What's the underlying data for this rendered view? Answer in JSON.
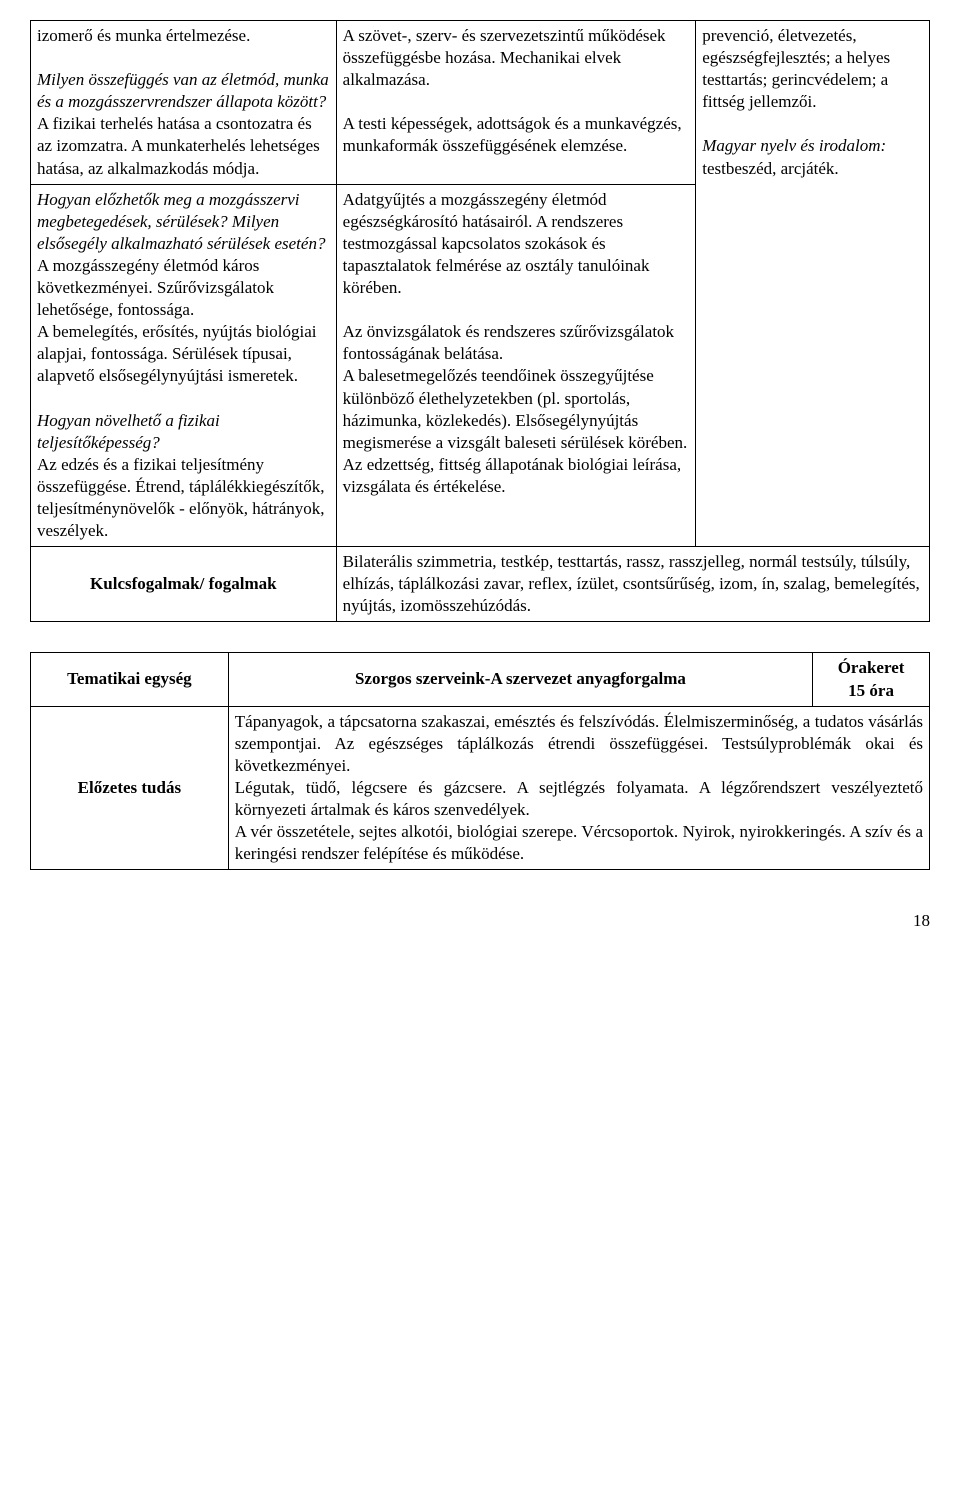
{
  "table1": {
    "row1": {
      "colA": {
        "p1": "izomerő és munka értelmezése.",
        "p2": "Milyen összefüggés van az életmód, munka és a mozgásszervrendszer állapota között?",
        "p3": "A fizikai terhelés hatása a csontozatra és az izomzatra. A munkaterhelés lehetséges hatása, az alkalmazkodás módja."
      },
      "colB": {
        "p1": "A szövet-, szerv- és szervezetszintű működések összefüggésbe hozása. Mechanikai elvek alkalmazása.",
        "p2": "A testi képességek, adottságok és a munkavégzés, munkaformák összefüggésének elemzése."
      },
      "colC": {
        "p1": "prevenció, életvezetés, egészségfejlesztés; a helyes testtartás; gerincvédelem; a fittség jellemzői.",
        "p2_label": "Magyar nyelv és irodalom:",
        "p2_rest": " testbeszéd, arcjáték."
      }
    },
    "row2": {
      "colA": {
        "p1_italic": "Hogyan előzhetők meg a mozgásszervi megbetegedések, sérülések? Milyen elsősegély alkalmazható sérülések esetén?",
        "p1_rest": "A mozgásszegény életmód káros következményei. Szűrővizsgálatok lehetősége, fontossága.",
        "p2": "A bemelegítés, erősítés, nyújtás biológiai alapjai, fontossága. Sérülések típusai, alapvető elsősegélynyújtási ismeretek.",
        "p3_italic": "Hogyan növelhető a fizikai teljesítőképesség?",
        "p3_rest": "Az edzés és a fizikai teljesítmény összefüggése. Étrend, táplálékkiegészítők, teljesítménynövelők - előnyök, hátrányok, veszélyek."
      },
      "colB": {
        "p1": "Adatgyűjtés a mozgásszegény életmód egészségkárosító hatásairól. A rendszeres testmozgással kapcsolatos szokások és tapasztalatok felmérése az osztály tanulóinak körében.",
        "p2": "Az önvizsgálatok és rendszeres szűrővizsgálatok fontosságának belátása.",
        "p3": "A balesetmegelőzés teendőinek összegyűjtése különböző élethelyzetekben (pl. sportolás, házimunka, közlekedés). Elsősegélynyújtás megismerése a vizsgált baleseti sérülések körében.",
        "p4": "Az edzettség, fittség állapotának biológiai leírása, vizsgálata és értékelése."
      }
    },
    "row3": {
      "label": "Kulcsfogalmak/ fogalmak",
      "content": "Bilaterális szimmetria, testkép, testtartás, rassz, rasszjelleg, normál testsúly, túlsúly, elhízás, táplálkozási zavar, reflex, ízület, csontsűrűség, izom, ín, szalag, bemelegítés, nyújtás, izomösszehúzódás."
    }
  },
  "table2": {
    "head": {
      "c1": "Tematikai egység",
      "c2": "Szorgos szerveink-A szervezet anyagforgalma",
      "c3a": "Órakeret",
      "c3b": "15 óra"
    },
    "row2": {
      "label": "Előzetes tudás",
      "content": {
        "p1": "Tápanyagok, a tápcsatorna szakaszai, emésztés és felszívódás. Élelmiszerminőség, a tudatos vásárlás szempontjai. Az egészséges táplálkozás étrendi összefüggései. Testsúlyproblémák okai és következményei.",
        "p2": "Légutak, tüdő, légcsere és gázcsere. A sejtlégzés folyamata. A légzőrendszert veszélyeztető környezeti ártalmak és káros szenvedélyek.",
        "p3": "A vér összetétele, sejtes alkotói, biológiai szerepe. Vércsoportok. Nyirok, nyirokkeringés. A szív és a keringési rendszer felépítése és működése."
      }
    }
  },
  "pageNumber": "18"
}
